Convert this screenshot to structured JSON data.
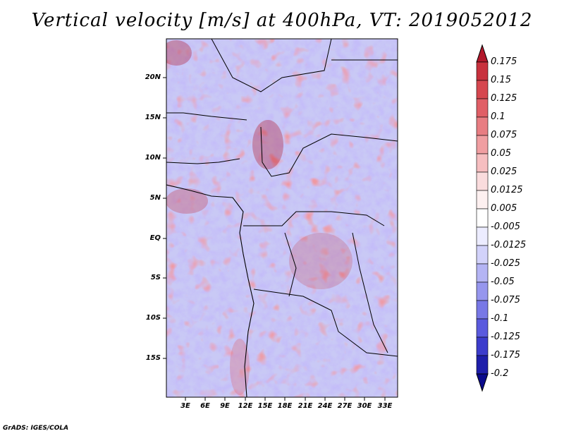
{
  "title": "Vertical velocity [m/s] at 400hPa, VT: 2019052012",
  "map": {
    "lat_labels": [
      "20N",
      "15N",
      "10N",
      "5N",
      "EQ",
      "5S",
      "10S",
      "15S"
    ],
    "lon_labels": [
      "3E",
      "6E",
      "9E",
      "12E",
      "15E",
      "18E",
      "21E",
      "24E",
      "27E",
      "30E",
      "33E"
    ]
  },
  "colorbar": {
    "levels": [
      "0.175",
      "0.15",
      "0.125",
      "0.1",
      "0.075",
      "0.05",
      "0.025",
      "0.0125",
      "0.005",
      "-0.005",
      "-0.0125",
      "-0.025",
      "-0.05",
      "-0.075",
      "-0.1",
      "-0.125",
      "-0.175",
      "-0.2"
    ],
    "colors": [
      "#b2182b",
      "#c8313d",
      "#d6474f",
      "#e05f66",
      "#e87d82",
      "#f09ea1",
      "#f6bec0",
      "#fadcdd",
      "#fdf0f0",
      "#ffffff",
      "#ececff",
      "#d2d2fa",
      "#b4b4f4",
      "#9696ee",
      "#7878e6",
      "#5a5ade",
      "#3c3ccc",
      "#1e1eaa",
      "#0a0a8c"
    ]
  },
  "credit": "GrADS: IGES/COLA"
}
